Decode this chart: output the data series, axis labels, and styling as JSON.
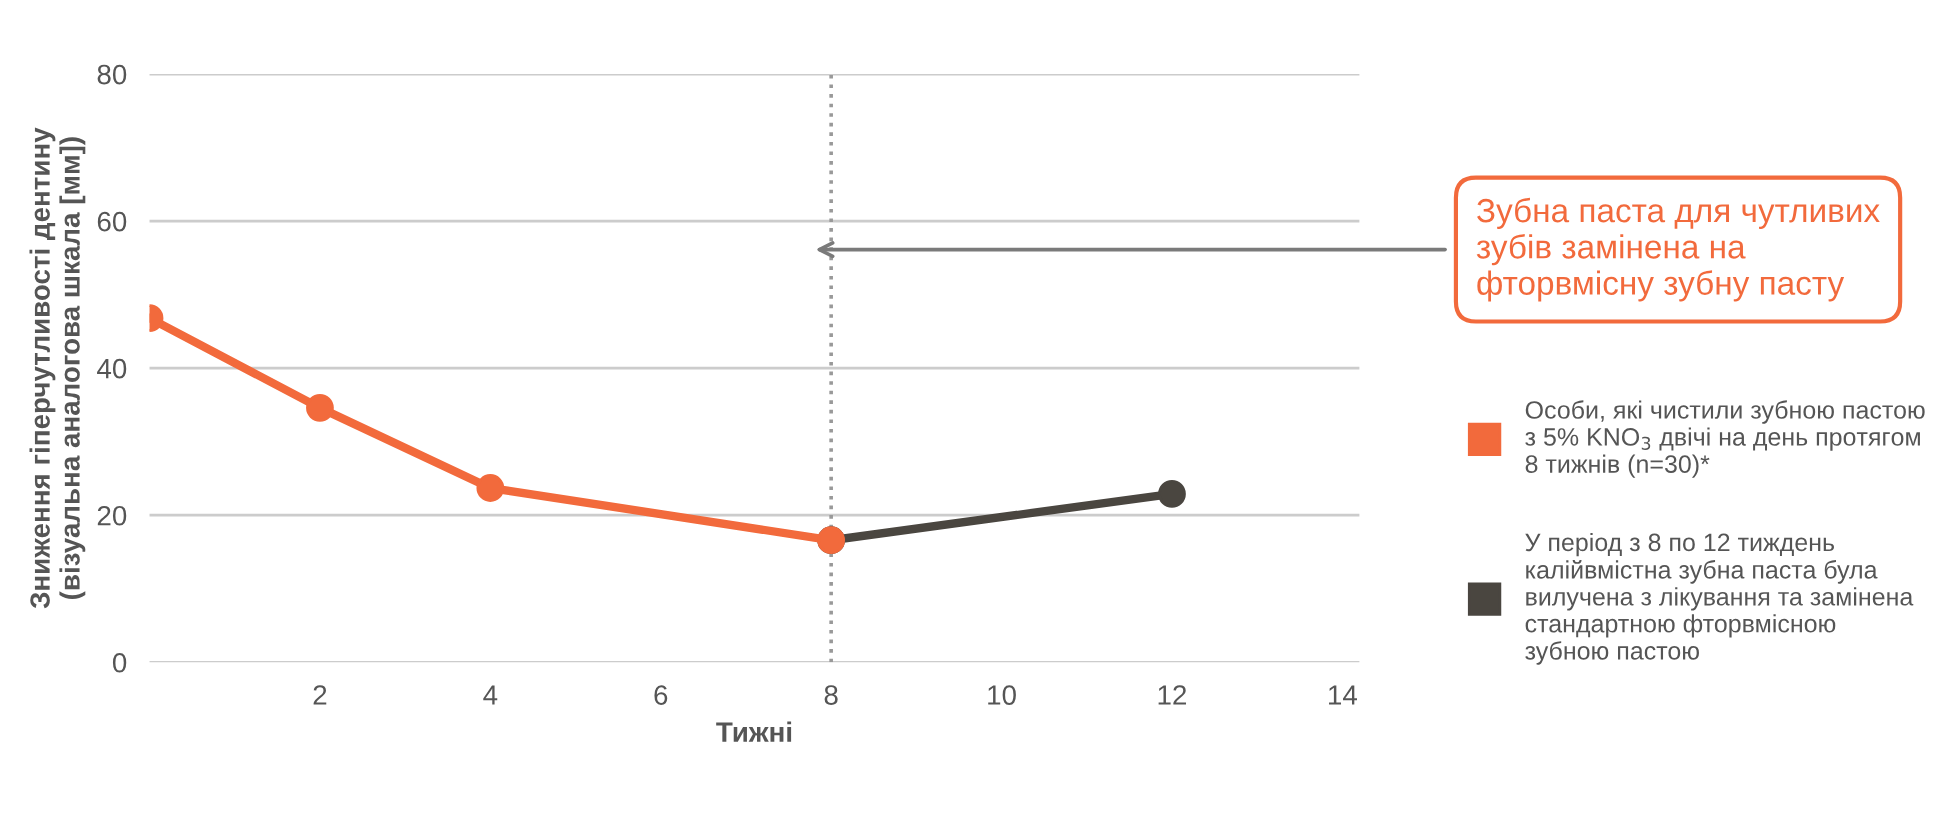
{
  "chart_data": {
    "type": "line",
    "xlabel": "Тижні",
    "ylabel": "Зниження гіперчутливості дентину\n(візуальна аналогова шкала [мм])",
    "xlim": [
      0,
      14.2
    ],
    "xticks": [
      2,
      4,
      6,
      8,
      10,
      12,
      14
    ],
    "ylim": [
      0,
      80
    ],
    "yticks": [
      0,
      20,
      40,
      60,
      80
    ],
    "grid": "y",
    "marker": "circle",
    "line_style": "solid",
    "legend": "right",
    "series": [
      {
        "name": "У період з 8 по 12 тиждень\nкалійвмістна зубна паста була\nвилучена з лікування та замінена\nстандартною фторвмісною\nзубною пастою",
        "color": "#4a4640",
        "x": [
          8,
          12
        ],
        "values": [
          16.6,
          22.9
        ]
      },
      {
        "name": "Особи, які чистили зубною пастою\nз 5% KNO$_{3}$ двічі на день протягом\n8 тижнів (n=30)*",
        "color": "#f26a3c",
        "x": [
          0,
          2,
          4,
          8
        ],
        "values": [
          46.8,
          34.6,
          23.7,
          16.6
        ]
      }
    ],
    "ref_lines": [
      {
        "axis": "x",
        "value": 8,
        "color": "#999999",
        "line_style": "dotted"
      }
    ],
    "annotations": [
      "Зубна паста для чутливих\nзубів замінена на\nфторвмісну зубну пасту"
    ]
  }
}
